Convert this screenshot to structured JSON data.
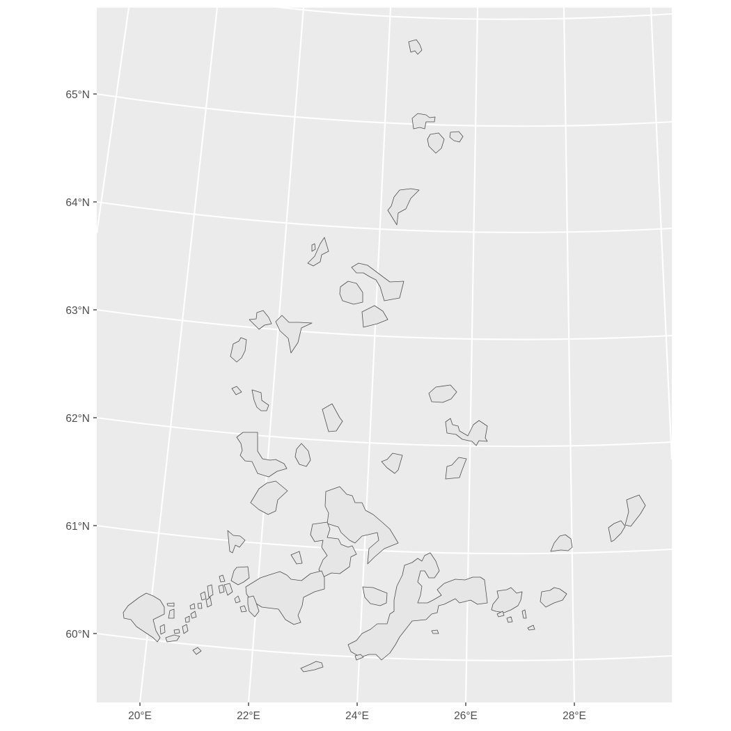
{
  "map": {
    "title": "",
    "colors": {
      "panel": "#ebebeb",
      "graticule": "#ffffff",
      "polygon_fill": "#e6e6e6",
      "polygon_stroke": "#4d4d4d",
      "axis_text": "#4d4d4d"
    },
    "y_axis": {
      "labels": [
        "65°N",
        "64°N",
        "63°N",
        "62°N",
        "61°N",
        "60°N"
      ]
    },
    "x_axis": {
      "labels": [
        "20°E",
        "22°E",
        "24°E",
        "26°E",
        "28°E"
      ]
    },
    "features": "protected-area polygons (southern & central Finland)"
  }
}
